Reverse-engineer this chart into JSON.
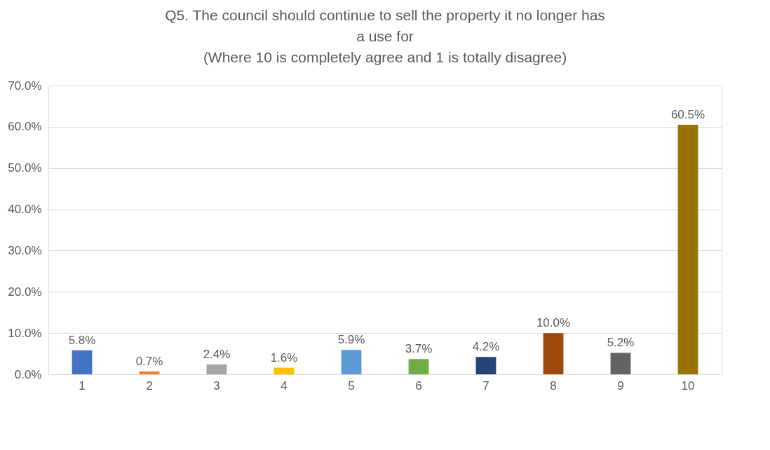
{
  "chart_data": {
    "type": "bar",
    "title": "Q5. The council should continue to sell the property it no longer has a use for",
    "subtitle": "(Where 10 is completely agree and 1 is totally disagree)",
    "categories": [
      "1",
      "2",
      "3",
      "4",
      "5",
      "6",
      "7",
      "8",
      "9",
      "10"
    ],
    "values": [
      5.8,
      0.7,
      2.4,
      1.6,
      5.9,
      3.7,
      4.2,
      10.0,
      5.2,
      60.5
    ],
    "colors": [
      "#4472c4",
      "#ed7d31",
      "#a5a5a5",
      "#ffc000",
      "#5b9bd5",
      "#70ad47",
      "#264478",
      "#9e480e",
      "#636363",
      "#997300"
    ],
    "value_labels": [
      "5.8%",
      "0.7%",
      "2.4%",
      "1.6%",
      "5.9%",
      "3.7%",
      "4.2%",
      "10.0%",
      "5.2%",
      "60.5%"
    ],
    "ylim": [
      0,
      70
    ],
    "yticks": [
      {
        "value": 0,
        "label": "0.0%"
      },
      {
        "value": 10,
        "label": "10.0%"
      },
      {
        "value": 20,
        "label": "20.0%"
      },
      {
        "value": 30,
        "label": "30.0%"
      },
      {
        "value": 40,
        "label": "40.0%"
      },
      {
        "value": 50,
        "label": "50.0%"
      },
      {
        "value": 60,
        "label": "60.0%"
      },
      {
        "value": 70,
        "label": "70.0%"
      }
    ],
    "grid": "y",
    "legend": false
  }
}
